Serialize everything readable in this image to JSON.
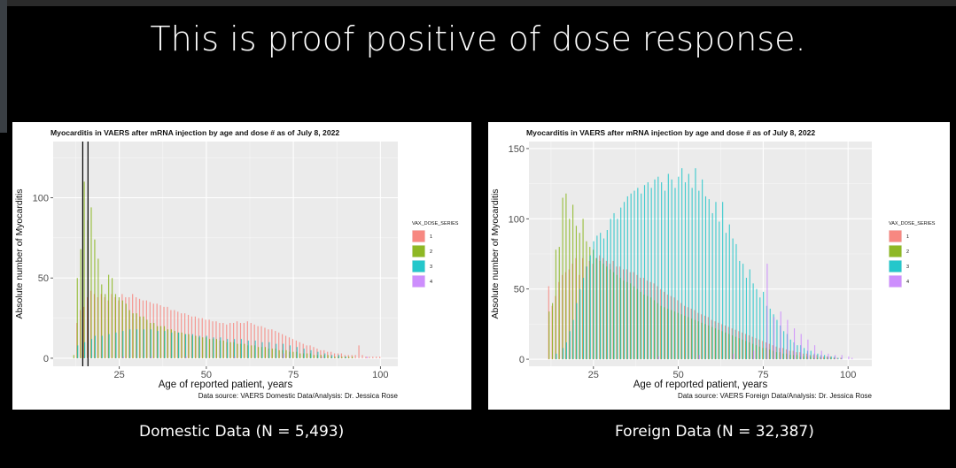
{
  "slide": {
    "title": "This is proof positive of dose response.",
    "caption_left": "Domestic Data (N = 5,493)",
    "caption_right": "Foreign Data (N = 32,387)"
  },
  "colors": {
    "dose1": "#F8766D",
    "dose2": "#7CAE00",
    "dose3": "#00BFC4",
    "dose4": "#C77CFF",
    "panel_bg": "#EBEBEB"
  },
  "chart_data": [
    {
      "type": "bar",
      "title": "Myocarditis in VAERS after mRNA injection by age and dose # as of July 8, 2022",
      "xlabel": "Age of reported patient, years",
      "ylabel": "Absolute number of Myocarditis",
      "source": "Data source: VAERS Domestic Data/Analysis: Dr. Jessica Rose",
      "xlim": [
        6,
        105
      ],
      "ylim": [
        -5,
        135
      ],
      "xticks": [
        25,
        50,
        75,
        100
      ],
      "yticks": [
        0,
        50,
        100
      ],
      "legend_title": "VAX_DOSE_SERIES",
      "legend_labels": [
        "1",
        "2",
        "3",
        "4"
      ],
      "legend_position": "right",
      "grid": true,
      "vlines": [
        14.5,
        16
      ],
      "series": [
        {
          "name": "1",
          "x": [
            13,
            14,
            15,
            16,
            17,
            18,
            19,
            20,
            21,
            22,
            23,
            24,
            25,
            26,
            27,
            28,
            29,
            30,
            31,
            32,
            33,
            34,
            35,
            36,
            37,
            38,
            39,
            40,
            41,
            42,
            43,
            44,
            45,
            46,
            47,
            48,
            49,
            50,
            51,
            52,
            53,
            54,
            55,
            56,
            57,
            58,
            59,
            60,
            61,
            62,
            63,
            64,
            65,
            66,
            67,
            68,
            69,
            70,
            71,
            72,
            73,
            74,
            75,
            76,
            77,
            78,
            79,
            80,
            81,
            82,
            83,
            84,
            85,
            86,
            87,
            88,
            89,
            90,
            91,
            92,
            93,
            94,
            95,
            96,
            97,
            98,
            99,
            100
          ],
          "values": [
            22,
            30,
            32,
            38,
            42,
            40,
            38,
            40,
            38,
            36,
            40,
            38,
            36,
            40,
            38,
            38,
            40,
            38,
            37,
            36,
            36,
            35,
            34,
            34,
            33,
            32,
            32,
            30,
            30,
            29,
            28,
            28,
            27,
            26,
            26,
            25,
            25,
            24,
            24,
            23,
            23,
            22,
            22,
            21,
            22,
            22,
            23,
            22,
            22,
            23,
            22,
            21,
            20,
            20,
            19,
            18,
            18,
            17,
            16,
            15,
            14,
            13,
            12,
            11,
            10,
            9,
            8,
            8,
            7,
            6,
            5,
            5,
            4,
            4,
            3,
            3,
            3,
            2,
            2,
            2,
            2,
            8,
            2,
            1,
            1,
            1,
            1,
            1
          ]
        },
        {
          "name": "2",
          "x": [
            12,
            13,
            14,
            15,
            16,
            17,
            18,
            19,
            20,
            21,
            22,
            23,
            24,
            25,
            26,
            27,
            28,
            29,
            30,
            31,
            32,
            33,
            34,
            35,
            36,
            37,
            38,
            39,
            40,
            41,
            42,
            43,
            44,
            45,
            46,
            47,
            48,
            49,
            50,
            51,
            52,
            53,
            54,
            55,
            56,
            57,
            58,
            59,
            60,
            61,
            62,
            63,
            64,
            65,
            66,
            67,
            68,
            69,
            70,
            71,
            72,
            73,
            74,
            75,
            76,
            77,
            78,
            79,
            80,
            81,
            82,
            83,
            84,
            85,
            86,
            87,
            88,
            89,
            90,
            91,
            92
          ],
          "values": [
            2,
            50,
            68,
            110,
            86,
            94,
            74,
            62,
            46,
            40,
            52,
            50,
            40,
            38,
            36,
            34,
            30,
            28,
            28,
            26,
            26,
            24,
            22,
            22,
            20,
            20,
            20,
            18,
            18,
            17,
            16,
            16,
            15,
            15,
            14,
            14,
            13,
            13,
            13,
            12,
            12,
            12,
            11,
            11,
            10,
            10,
            10,
            9,
            9,
            9,
            8,
            8,
            8,
            7,
            7,
            7,
            6,
            6,
            6,
            5,
            5,
            5,
            4,
            4,
            4,
            3,
            3,
            3,
            3,
            2,
            2,
            2,
            2,
            2,
            1,
            1,
            1,
            1,
            1,
            1,
            1
          ]
        },
        {
          "name": "3",
          "x": [
            13,
            15,
            17,
            18,
            20,
            22,
            24,
            26,
            28,
            30,
            32,
            34,
            36,
            38,
            40,
            42,
            44,
            46,
            48,
            50,
            52,
            54,
            56,
            58,
            60,
            62,
            64,
            66,
            68,
            70,
            72,
            74,
            76,
            78,
            80,
            82,
            84,
            86,
            88,
            90
          ],
          "values": [
            8,
            10,
            12,
            14,
            14,
            15,
            16,
            17,
            18,
            18,
            18,
            18,
            17,
            17,
            16,
            16,
            15,
            15,
            14,
            14,
            13,
            13,
            12,
            12,
            12,
            11,
            11,
            10,
            10,
            9,
            9,
            8,
            7,
            6,
            5,
            4,
            3,
            2,
            2,
            1
          ]
        },
        {
          "name": "4",
          "x": [
            26,
            34,
            44,
            58,
            72,
            83,
            96
          ],
          "values": [
            1,
            1,
            1,
            1,
            3,
            1,
            1
          ]
        }
      ]
    },
    {
      "type": "bar",
      "title": "Myocarditis in VAERS after mRNA injection by age and dose # as of July 8, 2022",
      "xlabel": "Age of reported patient, years",
      "ylabel": "Absolute number of Myocarditis",
      "source": "Data source: VAERS Foreign Data/Analysis: Dr. Jessica Rose",
      "xlim": [
        6,
        107
      ],
      "ylim": [
        -5,
        155
      ],
      "xticks": [
        25,
        50,
        75,
        100
      ],
      "yticks": [
        0,
        50,
        100,
        150
      ],
      "legend_title": "VAX_DOSE_SERIES",
      "legend_labels": [
        "1",
        "2",
        "3",
        "4"
      ],
      "legend_position": "right",
      "grid": true,
      "vlines": [],
      "series": [
        {
          "name": "1",
          "x": [
            12,
            13,
            14,
            15,
            16,
            17,
            18,
            19,
            20,
            21,
            22,
            23,
            24,
            25,
            26,
            27,
            28,
            29,
            30,
            31,
            32,
            33,
            34,
            35,
            36,
            37,
            38,
            39,
            40,
            41,
            42,
            43,
            44,
            45,
            46,
            47,
            48,
            49,
            50,
            51,
            52,
            53,
            54,
            55,
            56,
            57,
            58,
            59,
            60,
            61,
            62,
            63,
            64,
            65,
            66,
            67,
            68,
            69,
            70,
            71,
            72,
            73,
            74,
            75,
            76,
            77,
            78,
            79,
            80,
            81,
            82,
            83,
            84,
            85,
            86,
            87,
            88,
            89,
            90,
            91,
            92,
            93,
            94,
            95,
            96,
            97,
            98
          ],
          "values": [
            52,
            38,
            45,
            55,
            60,
            62,
            64,
            68,
            72,
            60,
            72,
            66,
            70,
            68,
            72,
            74,
            72,
            70,
            68,
            70,
            66,
            66,
            64,
            64,
            62,
            62,
            60,
            58,
            58,
            56,
            55,
            54,
            52,
            50,
            48,
            46,
            45,
            44,
            42,
            40,
            38,
            37,
            36,
            35,
            33,
            32,
            31,
            30,
            28,
            27,
            26,
            25,
            24,
            23,
            22,
            21,
            20,
            19,
            18,
            17,
            16,
            15,
            14,
            13,
            12,
            11,
            10,
            9,
            8,
            8,
            7,
            6,
            6,
            5,
            5,
            4,
            4,
            3,
            3,
            3,
            2,
            2,
            2,
            2,
            1,
            1,
            1
          ]
        },
        {
          "name": "2",
          "x": [
            12,
            13,
            14,
            15,
            16,
            17,
            18,
            19,
            20,
            21,
            22,
            23,
            24,
            25,
            26,
            27,
            28,
            29,
            30,
            31,
            32,
            33,
            34,
            35,
            36,
            37,
            38,
            39,
            40,
            41,
            42,
            43,
            44,
            45,
            46,
            47,
            48,
            49,
            50,
            51,
            52,
            53,
            54,
            55,
            56,
            57,
            58,
            59,
            60,
            61,
            62,
            63,
            64,
            65,
            66,
            67,
            68,
            69,
            70,
            71,
            72,
            73,
            74,
            75,
            76,
            77,
            78,
            79,
            80,
            81,
            82,
            83,
            84,
            85,
            86,
            87,
            88,
            89,
            90,
            91,
            92,
            93,
            94,
            95,
            96
          ],
          "values": [
            34,
            40,
            78,
            80,
            115,
            118,
            100,
            110,
            95,
            90,
            100,
            84,
            80,
            78,
            72,
            70,
            68,
            66,
            64,
            62,
            60,
            58,
            56,
            55,
            54,
            52,
            50,
            48,
            46,
            45,
            44,
            42,
            40,
            38,
            37,
            36,
            35,
            34,
            33,
            32,
            31,
            30,
            29,
            28,
            27,
            26,
            25,
            24,
            23,
            22,
            21,
            20,
            19,
            18,
            17,
            16,
            15,
            14,
            13,
            12,
            11,
            10,
            9,
            8,
            8,
            7,
            6,
            5,
            5,
            4,
            4,
            3,
            3,
            3,
            2,
            2,
            2,
            2,
            1,
            1,
            1,
            1,
            1,
            1,
            1
          ]
        },
        {
          "name": "3",
          "x": [
            14,
            16,
            17,
            18,
            19,
            20,
            21,
            22,
            23,
            24,
            25,
            26,
            27,
            28,
            29,
            30,
            31,
            32,
            33,
            34,
            35,
            36,
            37,
            38,
            39,
            40,
            41,
            42,
            43,
            44,
            45,
            46,
            47,
            48,
            49,
            50,
            51,
            52,
            53,
            54,
            55,
            56,
            57,
            58,
            59,
            60,
            61,
            62,
            63,
            64,
            65,
            66,
            67,
            68,
            69,
            70,
            71,
            72,
            73,
            74,
            75,
            76,
            77,
            78,
            79,
            80,
            81,
            82,
            83,
            84,
            85,
            86,
            87,
            88,
            89,
            90,
            91,
            92,
            93,
            94,
            95,
            96,
            97,
            98
          ],
          "values": [
            4,
            8,
            12,
            20,
            28,
            40,
            50,
            58,
            66,
            74,
            84,
            88,
            90,
            86,
            92,
            100,
            104,
            100,
            108,
            112,
            116,
            118,
            120,
            122,
            118,
            124,
            126,
            122,
            128,
            130,
            126,
            120,
            132,
            128,
            122,
            130,
            136,
            126,
            132,
            122,
            136,
            120,
            128,
            116,
            114,
            104,
            112,
            98,
            112,
            90,
            96,
            86,
            82,
            70,
            68,
            58,
            64,
            54,
            50,
            44,
            48,
            38,
            36,
            32,
            28,
            24,
            20,
            18,
            14,
            12,
            10,
            10,
            8,
            6,
            6,
            4,
            4,
            3,
            3,
            2,
            2,
            2,
            1,
            1
          ]
        },
        {
          "name": "4",
          "x": [
            44,
            56,
            66,
            72,
            76,
            78,
            80,
            82,
            84,
            86,
            88,
            90,
            92,
            94,
            96,
            98,
            100,
            101
          ],
          "values": [
            2,
            3,
            4,
            6,
            68,
            30,
            34,
            28,
            22,
            18,
            14,
            10,
            6,
            4,
            3,
            3,
            2,
            1
          ]
        }
      ]
    }
  ]
}
